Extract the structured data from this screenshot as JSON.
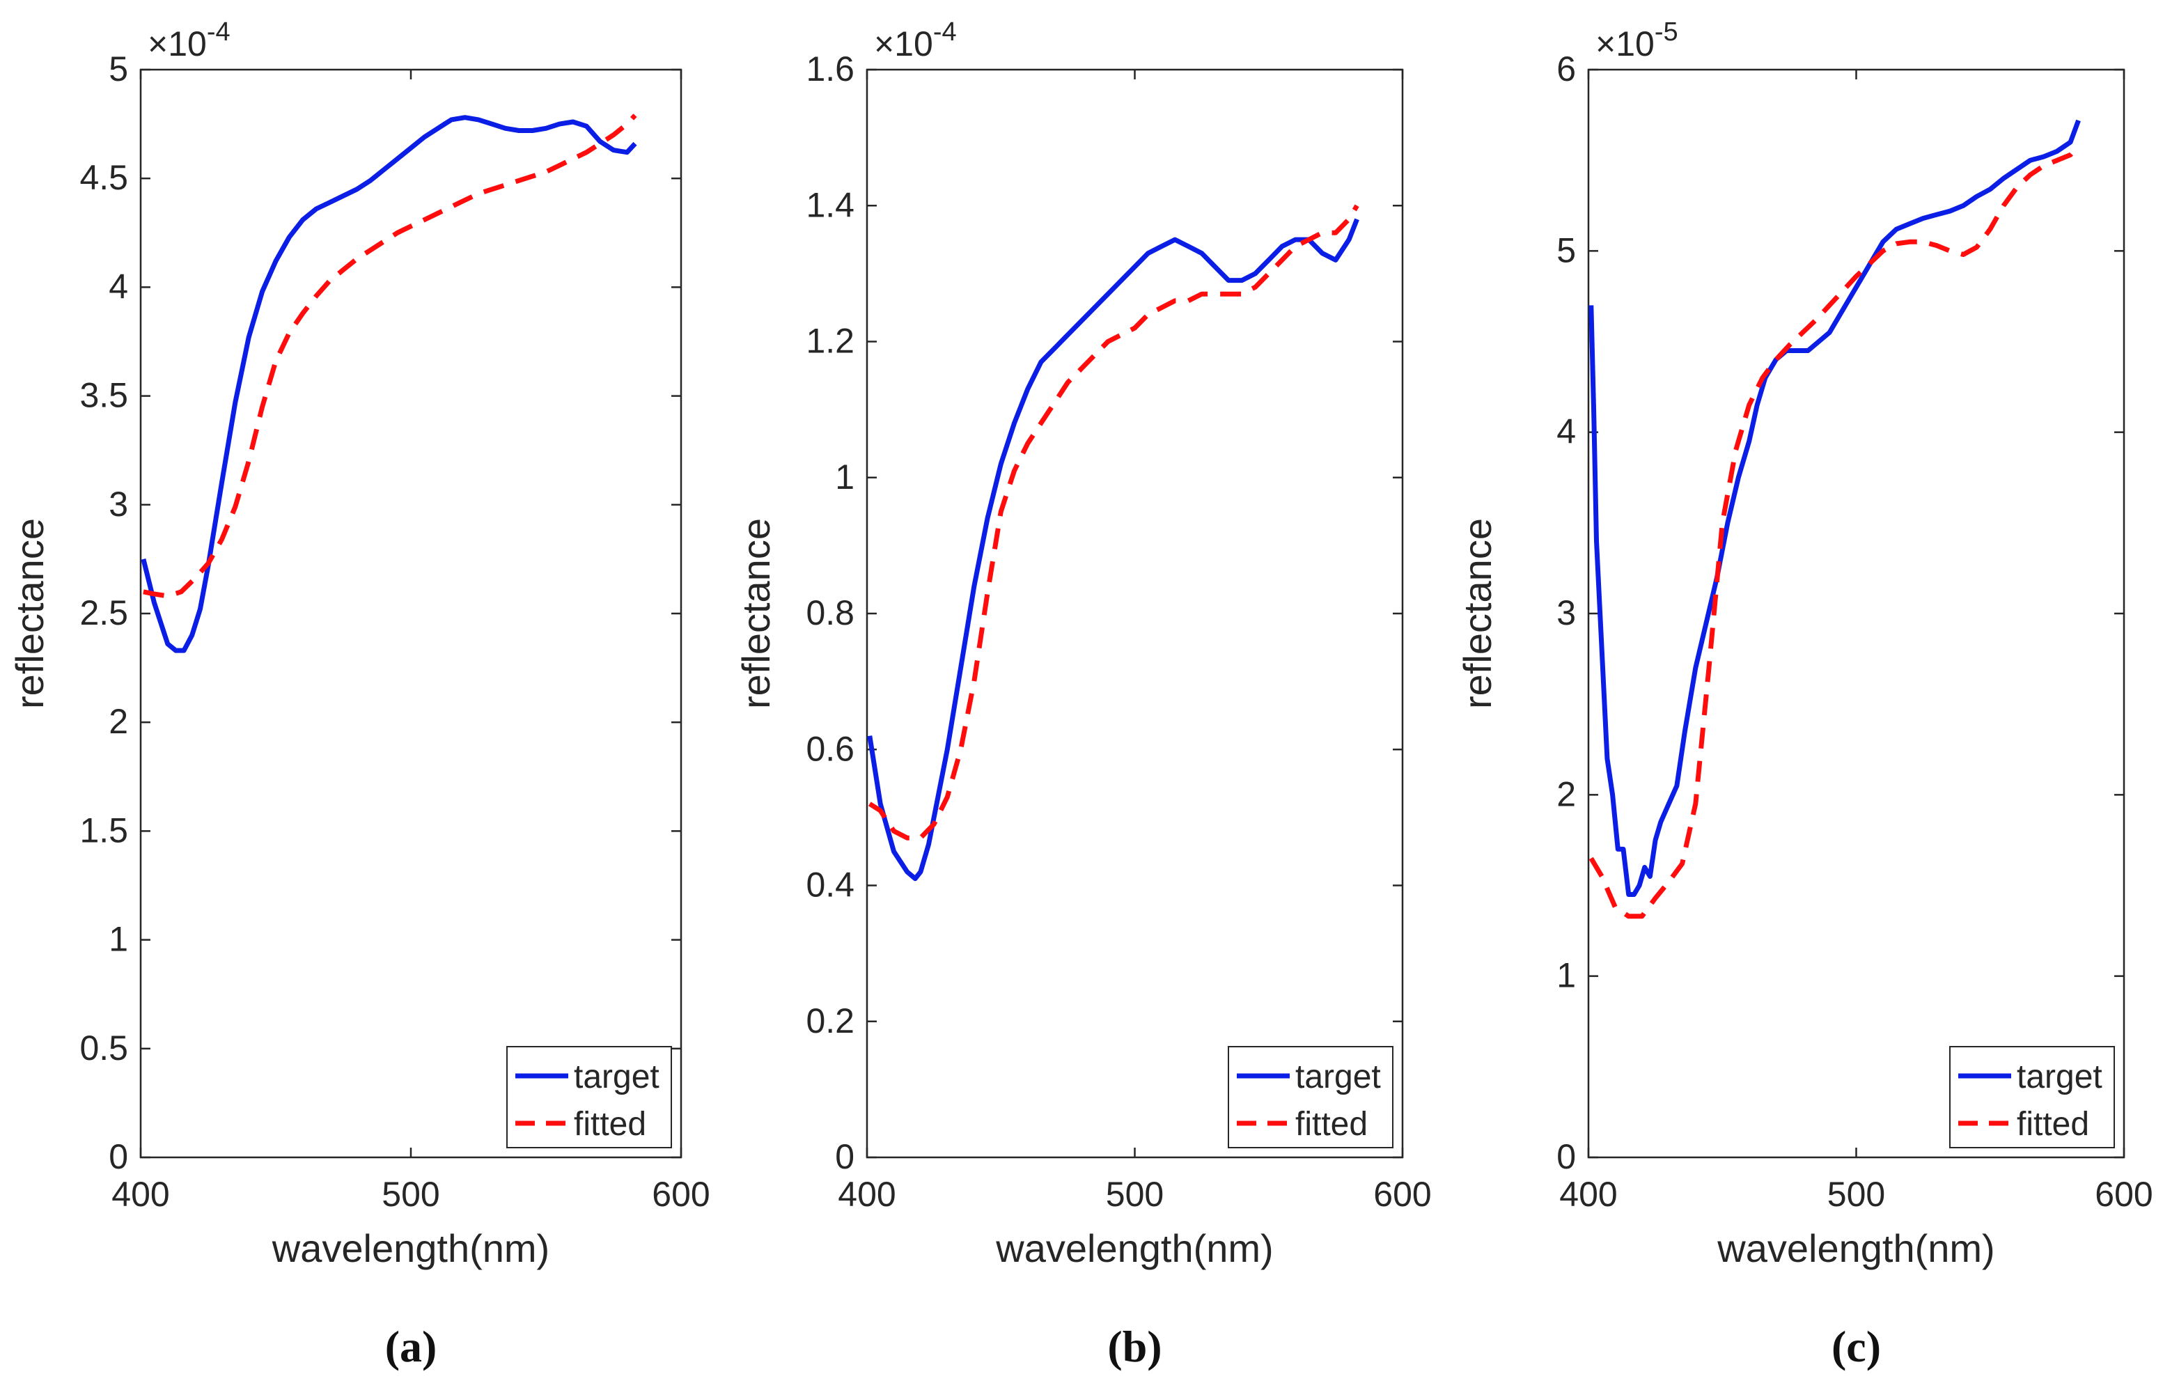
{
  "colors": {
    "target": "#0a1ee6",
    "fitted": "#ff0d0d",
    "axis": "#262626",
    "text": "#262626"
  },
  "chart_data": [
    {
      "type": "line",
      "panel_label": "(a)",
      "title": "",
      "xlabel": "wavelength(nm)",
      "ylabel": "reflectance",
      "exponent": {
        "base": "×10",
        "power": "-4"
      },
      "xlim": [
        400,
        600
      ],
      "ylim": [
        0,
        5
      ],
      "xticks": [
        400,
        500,
        600
      ],
      "xtick_labels": [
        "400",
        "500",
        "600"
      ],
      "yticks": [
        0,
        0.5,
        1,
        1.5,
        2,
        2.5,
        3,
        3.5,
        4,
        4.5,
        5
      ],
      "ytick_labels": [
        "0",
        "0.5",
        "1",
        "1.5",
        "2",
        "2.5",
        "3",
        "3.5",
        "4",
        "4.5",
        "5"
      ],
      "legend": {
        "position": "bottom-right",
        "entries": [
          "target",
          "fitted"
        ]
      },
      "series": [
        {
          "name": "target",
          "style": "solid",
          "x": [
            401,
            405,
            410,
            413,
            416,
            419,
            422,
            425,
            430,
            435,
            440,
            445,
            450,
            455,
            460,
            465,
            470,
            475,
            480,
            485,
            490,
            495,
            500,
            505,
            510,
            515,
            520,
            525,
            530,
            535,
            540,
            545,
            550,
            555,
            560,
            565,
            570,
            575,
            580,
            583
          ],
          "y": [
            2.75,
            2.55,
            2.36,
            2.33,
            2.33,
            2.4,
            2.52,
            2.72,
            3.1,
            3.47,
            3.77,
            3.98,
            4.12,
            4.23,
            4.31,
            4.36,
            4.39,
            4.42,
            4.45,
            4.49,
            4.54,
            4.59,
            4.64,
            4.69,
            4.73,
            4.77,
            4.78,
            4.77,
            4.75,
            4.73,
            4.72,
            4.72,
            4.73,
            4.75,
            4.76,
            4.74,
            4.67,
            4.63,
            4.62,
            4.66
          ]
        },
        {
          "name": "fitted",
          "style": "dashed",
          "x": [
            401,
            405,
            410,
            415,
            420,
            425,
            430,
            435,
            440,
            445,
            450,
            455,
            460,
            465,
            470,
            475,
            480,
            485,
            490,
            495,
            500,
            505,
            510,
            515,
            520,
            525,
            530,
            535,
            540,
            545,
            550,
            555,
            560,
            565,
            570,
            575,
            580,
            583
          ],
          "y": [
            2.6,
            2.59,
            2.58,
            2.6,
            2.66,
            2.73,
            2.84,
            2.99,
            3.2,
            3.45,
            3.66,
            3.79,
            3.88,
            3.96,
            4.03,
            4.08,
            4.13,
            4.17,
            4.21,
            4.25,
            4.28,
            4.31,
            4.34,
            4.37,
            4.4,
            4.43,
            4.45,
            4.47,
            4.49,
            4.51,
            4.53,
            4.56,
            4.59,
            4.62,
            4.66,
            4.7,
            4.75,
            4.79
          ]
        }
      ]
    },
    {
      "type": "line",
      "panel_label": "(b)",
      "title": "",
      "xlabel": "wavelength(nm)",
      "ylabel": "reflectance",
      "exponent": {
        "base": "×10",
        "power": "-4"
      },
      "xlim": [
        400,
        600
      ],
      "ylim": [
        0,
        1.6
      ],
      "xticks": [
        400,
        500,
        600
      ],
      "xtick_labels": [
        "400",
        "500",
        "600"
      ],
      "yticks": [
        0,
        0.2,
        0.4,
        0.6,
        0.8,
        1,
        1.2,
        1.4,
        1.6
      ],
      "ytick_labels": [
        "0",
        "0.2",
        "0.4",
        "0.6",
        "0.8",
        "1",
        "1.2",
        "1.4",
        "1.6"
      ],
      "legend": {
        "position": "bottom-right",
        "entries": [
          "target",
          "fitted"
        ]
      },
      "series": [
        {
          "name": "target",
          "style": "solid",
          "x": [
            401,
            405,
            410,
            415,
            418,
            420,
            423,
            426,
            430,
            435,
            440,
            445,
            450,
            455,
            460,
            465,
            470,
            475,
            480,
            485,
            490,
            495,
            500,
            505,
            510,
            515,
            520,
            525,
            530,
            535,
            540,
            545,
            550,
            555,
            560,
            565,
            570,
            575,
            580,
            583
          ],
          "y": [
            0.62,
            0.52,
            0.45,
            0.42,
            0.41,
            0.42,
            0.46,
            0.52,
            0.6,
            0.72,
            0.84,
            0.94,
            1.02,
            1.08,
            1.13,
            1.17,
            1.19,
            1.21,
            1.23,
            1.25,
            1.27,
            1.29,
            1.31,
            1.33,
            1.34,
            1.35,
            1.34,
            1.33,
            1.31,
            1.29,
            1.29,
            1.3,
            1.32,
            1.34,
            1.35,
            1.35,
            1.33,
            1.32,
            1.35,
            1.38
          ]
        },
        {
          "name": "fitted",
          "style": "dashed",
          "x": [
            401,
            405,
            410,
            415,
            420,
            425,
            430,
            435,
            440,
            445,
            450,
            455,
            460,
            465,
            470,
            475,
            480,
            485,
            490,
            495,
            500,
            505,
            510,
            515,
            520,
            525,
            530,
            535,
            540,
            545,
            550,
            555,
            560,
            565,
            570,
            575,
            580,
            583
          ],
          "y": [
            0.52,
            0.51,
            0.48,
            0.47,
            0.47,
            0.49,
            0.53,
            0.6,
            0.7,
            0.83,
            0.95,
            1.01,
            1.05,
            1.08,
            1.11,
            1.14,
            1.16,
            1.18,
            1.2,
            1.21,
            1.22,
            1.24,
            1.25,
            1.26,
            1.26,
            1.27,
            1.27,
            1.27,
            1.27,
            1.28,
            1.3,
            1.32,
            1.34,
            1.35,
            1.36,
            1.36,
            1.38,
            1.4
          ]
        }
      ]
    },
    {
      "type": "line",
      "panel_label": "(c)",
      "title": "",
      "xlabel": "wavelength(nm)",
      "ylabel": "reflectance",
      "exponent": {
        "base": "×10",
        "power": "-5"
      },
      "xlim": [
        400,
        600
      ],
      "ylim": [
        0,
        6
      ],
      "xticks": [
        400,
        500,
        600
      ],
      "xtick_labels": [
        "400",
        "500",
        "600"
      ],
      "yticks": [
        0,
        1,
        2,
        3,
        4,
        5,
        6
      ],
      "ytick_labels": [
        "0",
        "1",
        "2",
        "3",
        "4",
        "5",
        "6"
      ],
      "legend": {
        "position": "bottom-right",
        "entries": [
          "target",
          "fitted"
        ]
      },
      "series": [
        {
          "name": "target",
          "style": "solid",
          "x": [
            401,
            402,
            403,
            405,
            407,
            409,
            411,
            413,
            415,
            417,
            419,
            421,
            423,
            425,
            427,
            430,
            433,
            436,
            440,
            444,
            448,
            452,
            456,
            460,
            463,
            466,
            470,
            474,
            478,
            482,
            486,
            490,
            494,
            498,
            502,
            506,
            510,
            515,
            520,
            525,
            530,
            535,
            540,
            545,
            550,
            555,
            560,
            565,
            570,
            575,
            580,
            583
          ],
          "y": [
            4.7,
            4.1,
            3.4,
            2.8,
            2.2,
            2.0,
            1.7,
            1.7,
            1.45,
            1.45,
            1.5,
            1.6,
            1.55,
            1.75,
            1.85,
            1.95,
            2.05,
            2.35,
            2.7,
            2.95,
            3.2,
            3.5,
            3.75,
            3.95,
            4.15,
            4.3,
            4.4,
            4.45,
            4.45,
            4.45,
            4.5,
            4.55,
            4.65,
            4.75,
            4.85,
            4.95,
            5.05,
            5.12,
            5.15,
            5.18,
            5.2,
            5.22,
            5.25,
            5.3,
            5.34,
            5.4,
            5.45,
            5.5,
            5.52,
            5.55,
            5.6,
            5.72
          ]
        },
        {
          "name": "fitted",
          "style": "dashed",
          "x": [
            401,
            405,
            410,
            415,
            420,
            425,
            430,
            435,
            440,
            445,
            450,
            455,
            460,
            465,
            470,
            475,
            480,
            485,
            490,
            495,
            500,
            505,
            510,
            515,
            520,
            525,
            530,
            535,
            540,
            545,
            550,
            555,
            560,
            565,
            570,
            575,
            580,
            583
          ],
          "y": [
            1.65,
            1.55,
            1.38,
            1.33,
            1.33,
            1.43,
            1.52,
            1.62,
            1.95,
            2.7,
            3.5,
            3.9,
            4.15,
            4.3,
            4.4,
            4.48,
            4.55,
            4.62,
            4.7,
            4.78,
            4.86,
            4.93,
            5.0,
            5.04,
            5.05,
            5.05,
            5.03,
            5.0,
            4.98,
            5.02,
            5.12,
            5.25,
            5.35,
            5.42,
            5.47,
            5.5,
            5.53,
            5.58
          ]
        }
      ]
    }
  ]
}
